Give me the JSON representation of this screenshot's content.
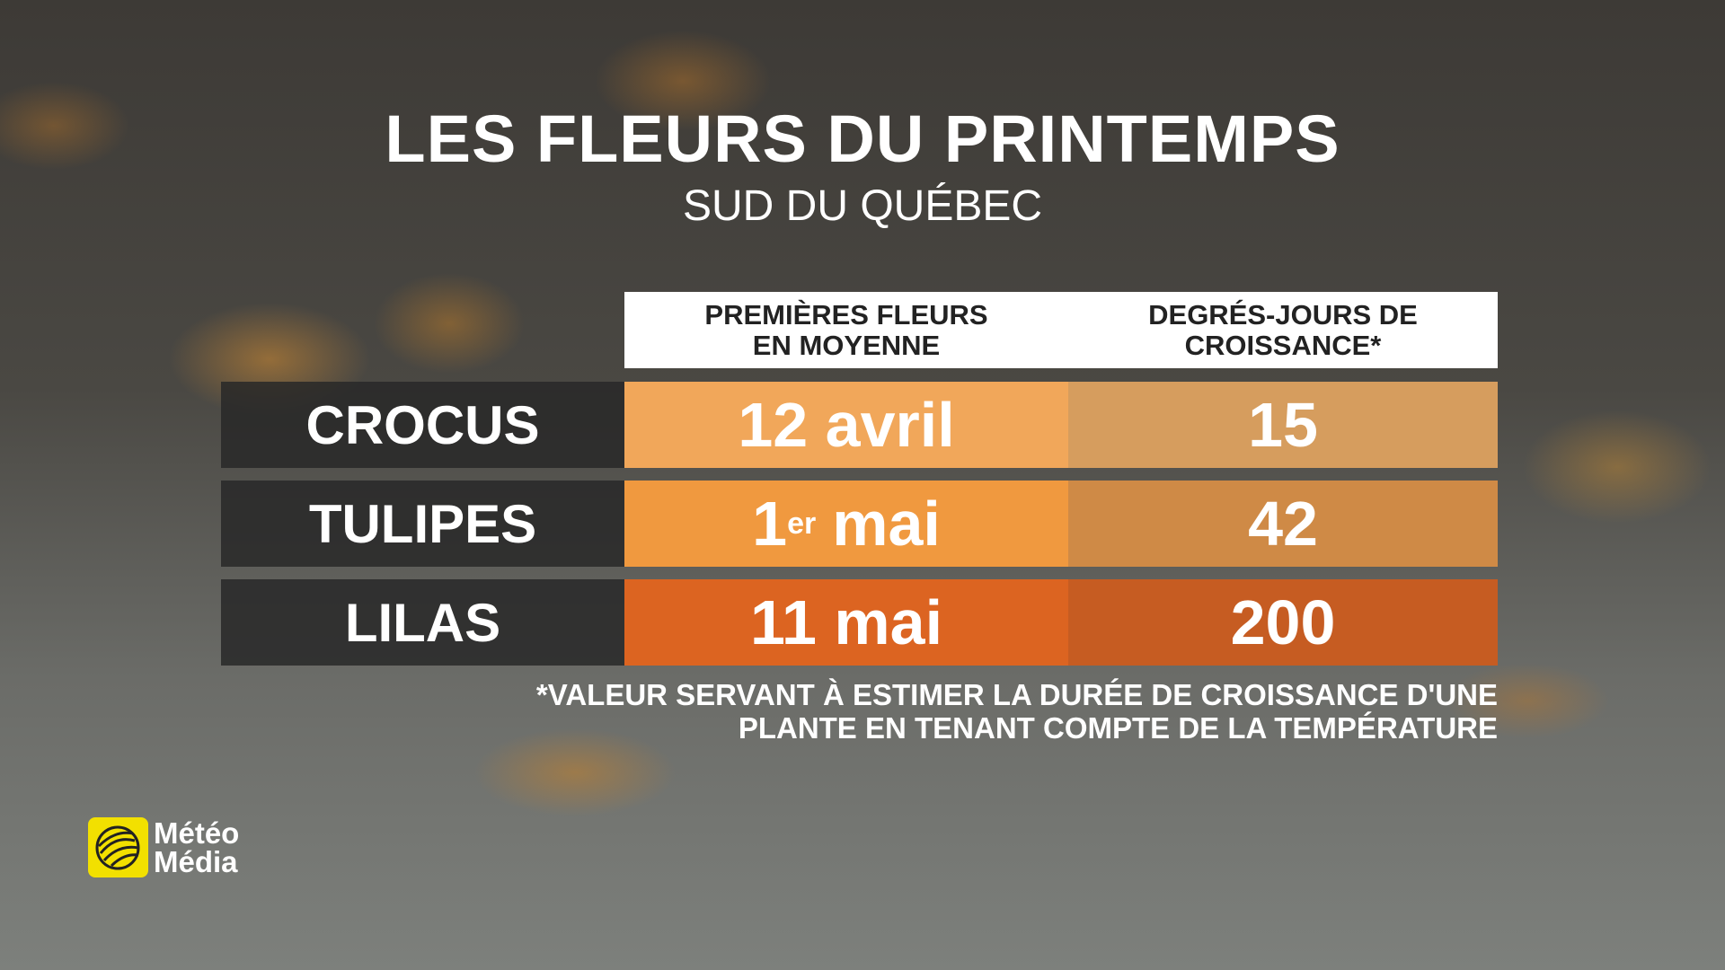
{
  "header": {
    "title": "LES FLEURS DU PRINTEMPS",
    "subtitle": "SUD DU QUÉBEC"
  },
  "table": {
    "columns": [
      [
        "PREMIÈRES FLEURS",
        "EN MOYENNE"
      ],
      [
        "DEGRÉS-JOURS DE",
        "CROISSANCE*"
      ]
    ],
    "rows": [
      {
        "label": "CROCUS",
        "date": "12 avril",
        "value": 15,
        "colors": [
          "#f1a75a",
          "#d69d5e"
        ]
      },
      {
        "label": "TULIPES",
        "date": {
          "text": "1",
          "sup": "er",
          "after": "mai"
        },
        "value": 42,
        "colors": [
          "#f0993f",
          "#cf8a46"
        ]
      },
      {
        "label": "LILAS",
        "date": "11 mai",
        "value": 200,
        "colors": [
          "#dc6421",
          "#c65c22"
        ]
      }
    ]
  },
  "footnote": [
    "*VALEUR SERVANT À ESTIMER LA DURÉE DE CROISSANCE D'UNE",
    "PLANTE EN TENANT COMPTE DE LA TEMPÉRATURE"
  ],
  "logo": [
    "Météo",
    "Média"
  ]
}
